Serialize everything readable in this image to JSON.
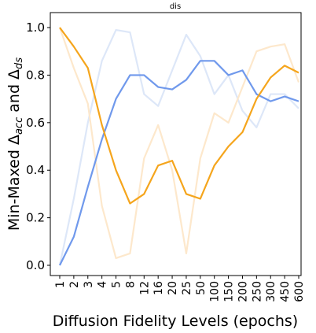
{
  "chart_data": {
    "type": "line",
    "title": "dis",
    "xlabel": "Diffusion Fidelity Levels (epochs)",
    "ylabel_parts": [
      "Min-Maxed Δ",
      "acc",
      " and Δ",
      "ds"
    ],
    "categories": [
      "1",
      "2",
      "3",
      "4",
      "5",
      "8",
      "12",
      "16",
      "20",
      "25",
      "50",
      "100",
      "150",
      "200",
      "250",
      "300",
      "450",
      "600"
    ],
    "series": [
      {
        "color": "#dde7f8",
        "values": [
          0,
          0.28,
          0.6,
          0.86,
          0.99,
          0.98,
          0.72,
          0.67,
          0.82,
          0.97,
          0.88,
          0.72,
          0.8,
          0.65,
          0.58,
          0.72,
          0.72,
          0.66
        ]
      },
      {
        "color": "#fde8cc",
        "values": [
          1.0,
          0.83,
          0.68,
          0.25,
          0.03,
          0.05,
          0.45,
          0.59,
          0.4,
          0.05,
          0.45,
          0.64,
          0.6,
          0.75,
          0.9,
          0.92,
          0.93,
          0.77
        ]
      },
      {
        "color": "#7099ec",
        "values": [
          0,
          0.12,
          0.33,
          0.53,
          0.7,
          0.8,
          0.8,
          0.75,
          0.74,
          0.78,
          0.86,
          0.86,
          0.8,
          0.82,
          0.72,
          0.69,
          0.71,
          0.69
        ]
      },
      {
        "color": "#f5a51c",
        "values": [
          1.0,
          0.92,
          0.83,
          0.59,
          0.4,
          0.26,
          0.3,
          0.42,
          0.44,
          0.3,
          0.28,
          0.42,
          0.5,
          0.56,
          0.7,
          0.79,
          0.84,
          0.81
        ]
      }
    ],
    "ylim": [
      -0.043,
      1.063
    ],
    "yticks": [
      {
        "value": 0,
        "label": "0.0"
      },
      {
        "value": 0.2,
        "label": "0.2"
      },
      {
        "value": 0.4,
        "label": "0.4"
      },
      {
        "value": 0.6,
        "label": "0.6"
      },
      {
        "value": 0.8,
        "label": "0.8"
      },
      {
        "value": 1.0,
        "label": "1.0"
      }
    ],
    "grid": false
  }
}
